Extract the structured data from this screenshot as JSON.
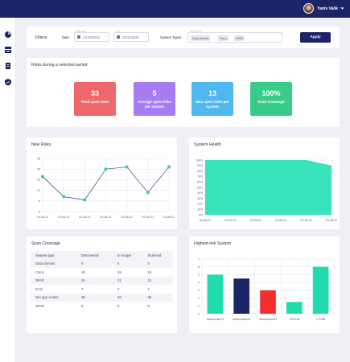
{
  "user": {
    "name": "Yaniv Valik"
  },
  "sidebar": {
    "icons": [
      "dashboard-icon",
      "assets-icon",
      "reports-icon",
      "shield-icon"
    ]
  },
  "filters": {
    "label": "Filters:",
    "date_label": "Date",
    "from_label": "FROM",
    "from_value": "12/10/2022",
    "to_label": "TO",
    "to_value": "20/10/2022",
    "system_types_label": "System Types",
    "select_label": "SELECT",
    "chips": [
      "Data domain",
      "Cisco",
      "3PAR"
    ],
    "apply_label": "Apply"
  },
  "risks": {
    "title": "Risks during a selected period",
    "tiles": [
      {
        "value": "33",
        "caption": "Total open risks",
        "color": "#f0676a"
      },
      {
        "value": "5",
        "caption": "Average open risks per system",
        "color": "#a67cf2"
      },
      {
        "value": "13",
        "caption": "Max open risks per system",
        "color": "#4fb8f0"
      },
      {
        "value": "100%",
        "caption": "Scan Coverage",
        "color": "#39cc89"
      }
    ]
  },
  "new_risks": {
    "title": "New Risks"
  },
  "system_health": {
    "title": "System Health"
  },
  "scan_coverage": {
    "title": "Scan Coverage",
    "columns": [
      "System type",
      "Discovered",
      "In Scope",
      "Scanned"
    ],
    "rows": [
      [
        "Data domain",
        "5",
        "5",
        "5"
      ],
      [
        "Cisco",
        "15",
        "15",
        "15"
      ],
      [
        "3PAR",
        "21",
        "21",
        "21"
      ],
      [
        "ECS",
        "7",
        "7",
        "7"
      ],
      [
        "Net app cluster",
        "36",
        "36",
        "36"
      ],
      [
        "3PAR",
        "8",
        "8",
        "8"
      ]
    ]
  },
  "highest_risk": {
    "title": "Highest-risk System"
  },
  "chart_data": [
    {
      "type": "line",
      "title": "New Risks",
      "x": [
        "03-06-21",
        "03-06-21",
        "03-06-21",
        "03-06-21",
        "03-06-21",
        "03-06-21",
        "03-06-21"
      ],
      "series": [
        {
          "values": [
            16.5,
            7,
            5.5,
            20,
            21,
            9,
            21
          ]
        }
      ],
      "ylim": [
        0,
        25
      ],
      "yticks": [
        "0",
        "5",
        "10",
        "15",
        "20",
        "25"
      ],
      "grid": true,
      "color": "#25d3b1"
    },
    {
      "type": "area",
      "title": "System Health",
      "x": [
        "03-06-21",
        "03-06-21",
        "03-06-21",
        "03-06-21",
        "03-06-21",
        "03-06-21"
      ],
      "series": [
        {
          "values": [
            100,
            100,
            100,
            100,
            100,
            90
          ]
        }
      ],
      "ylim": [
        0,
        100
      ],
      "yticks": [
        "0%",
        "10%",
        "20%",
        "30%",
        "40%",
        "50%",
        "60%",
        "70%",
        "80%",
        "90%",
        "100%"
      ],
      "grid": true,
      "color": "#38e2bd"
    },
    {
      "type": "bar",
      "title": "Highest-risk System",
      "categories": [
        "datamonitor23",
        "datamonitor23",
        "datamonitor23",
        "1097164",
        "172288"
      ],
      "values": [
        5,
        4.5,
        3,
        1.5,
        6
      ],
      "colors": [
        "#21dbae",
        "#1c2467",
        "#f0302f",
        "#21dbae",
        "#21dbae"
      ],
      "ylim": [
        0,
        7
      ],
      "yticks": [
        "0",
        "1",
        "2",
        "3",
        "4",
        "5",
        "6",
        "7"
      ],
      "grid": true
    }
  ]
}
